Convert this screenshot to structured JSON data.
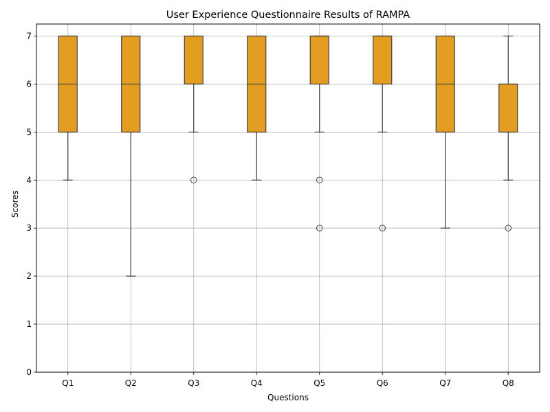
{
  "chart_data": {
    "type": "box",
    "title": "User Experience Questionnaire Results of RAMPA",
    "xlabel": "Questions",
    "ylabel": "Scores",
    "ylim": [
      0,
      7.25
    ],
    "yticks": [
      0,
      1,
      2,
      3,
      4,
      5,
      6,
      7
    ],
    "grid": true,
    "colors": {
      "box_fill": "#e39e21",
      "box_edge": "#3f3f3f",
      "grid": "#b0b0b0"
    },
    "categories": [
      "Q1",
      "Q2",
      "Q3",
      "Q4",
      "Q5",
      "Q6",
      "Q7",
      "Q8"
    ],
    "boxes": [
      {
        "q1": 5,
        "median": 6,
        "q3": 7,
        "whisker_low": 4,
        "whisker_high": 7,
        "outliers": []
      },
      {
        "q1": 5,
        "median": 6,
        "q3": 7,
        "whisker_low": 2,
        "whisker_high": 7,
        "outliers": []
      },
      {
        "q1": 6,
        "median": 6,
        "q3": 7,
        "whisker_low": 5,
        "whisker_high": 7,
        "outliers": [
          4
        ]
      },
      {
        "q1": 5,
        "median": 6,
        "q3": 7,
        "whisker_low": 4,
        "whisker_high": 7,
        "outliers": []
      },
      {
        "q1": 6,
        "median": 7,
        "q3": 7,
        "whisker_low": 5,
        "whisker_high": 7,
        "outliers": [
          4,
          3
        ]
      },
      {
        "q1": 6,
        "median": 7,
        "q3": 7,
        "whisker_low": 5,
        "whisker_high": 7,
        "outliers": [
          3
        ]
      },
      {
        "q1": 5,
        "median": 6,
        "q3": 7,
        "whisker_low": 3,
        "whisker_high": 7,
        "outliers": []
      },
      {
        "q1": 5,
        "median": 6,
        "q3": 6,
        "whisker_low": 4,
        "whisker_high": 7,
        "outliers": [
          3
        ]
      }
    ]
  }
}
